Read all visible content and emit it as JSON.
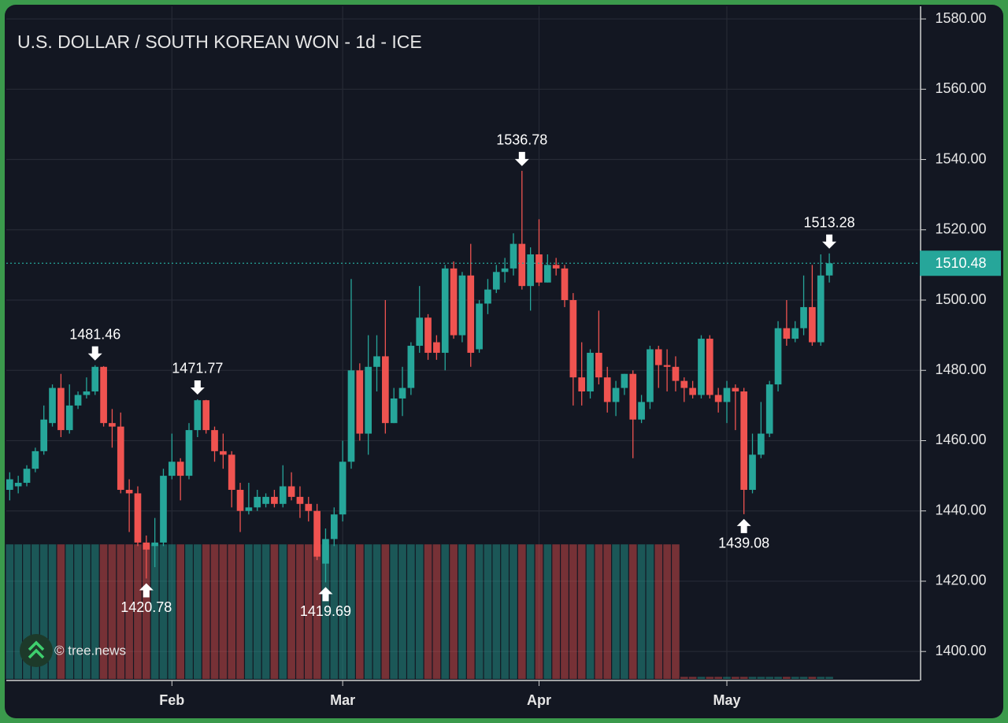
{
  "chart_data": {
    "type": "candlestick",
    "title": "U.S. DOLLAR / SOUTH KOREAN WON - 1d - ICE",
    "watermark": "© tree.news",
    "up_color": "#26a69a",
    "down_color": "#ef5350",
    "open": [
      1446,
      1447,
      1448,
      1452,
      1457,
      1465,
      1475,
      1463,
      1470,
      1473,
      1474,
      1481,
      1465,
      1464,
      1446,
      1445,
      1431,
      1430,
      1431,
      1450,
      1454,
      1450,
      1463,
      1471.5,
      1463,
      1457,
      1456,
      1446,
      1440,
      1441,
      1442,
      1444,
      1442,
      1447,
      1444,
      1442,
      1440,
      1425,
      1432,
      1439,
      1454,
      1480,
      1462,
      1481,
      1484,
      1465,
      1472,
      1475,
      1487,
      1495,
      1488,
      1485,
      1509,
      1490,
      1507,
      1486,
      1499,
      1503,
      1508,
      1509,
      1516,
      1504,
      1513,
      1505,
      1510,
      1509,
      1500,
      1478,
      1474,
      1485,
      1478,
      1471,
      1475,
      1479,
      1466,
      1471,
      1486,
      1481.5,
      1481,
      1477,
      1475,
      1473,
      1489,
      1473,
      1471,
      1475,
      1474,
      1446,
      1456,
      1462,
      1476,
      1492,
      1489,
      1492,
      1498,
      1488,
      1507
    ],
    "high": [
      1451,
      1450,
      1453,
      1458,
      1470,
      1476,
      1479,
      1476,
      1474,
      1478,
      1481.46,
      1481.2,
      1469,
      1468,
      1449,
      1447,
      1433,
      1438,
      1452,
      1462,
      1455,
      1465,
      1471.77,
      1471.6,
      1464,
      1462,
      1457,
      1448,
      1448,
      1446,
      1445,
      1446,
      1453,
      1451,
      1447,
      1444,
      1442,
      1435,
      1441,
      1460,
      1506,
      1482,
      1490,
      1490,
      1500,
      1475,
      1481,
      1488,
      1504,
      1496,
      1490,
      1510,
      1511,
      1508,
      1516,
      1500,
      1506,
      1510,
      1512,
      1519,
      1536.78,
      1515,
      1523,
      1513,
      1512,
      1510,
      1502,
      1488,
      1486,
      1497,
      1481,
      1477,
      1479,
      1480,
      1473,
      1487,
      1487,
      1486,
      1484,
      1478,
      1477,
      1490,
      1490,
      1475,
      1477,
      1476,
      1475,
      1462,
      1471,
      1477,
      1494,
      1500,
      1494,
      1507,
      1510,
      1513,
      1513.28
    ],
    "low": [
      1443,
      1445,
      1447,
      1451,
      1456,
      1464,
      1461,
      1462,
      1469,
      1472,
      1473,
      1464,
      1458,
      1445,
      1434,
      1430,
      1420.78,
      1424,
      1430,
      1449,
      1443,
      1449,
      1461,
      1462,
      1454,
      1452,
      1441,
      1434,
      1439,
      1440,
      1441,
      1441,
      1441,
      1443,
      1438,
      1437,
      1426,
      1419.69,
      1430,
      1437,
      1452,
      1460,
      1456,
      1474,
      1462,
      1465,
      1467,
      1473,
      1485,
      1483,
      1483,
      1480,
      1489,
      1488,
      1481,
      1485,
      1496,
      1502,
      1505,
      1507,
      1503,
      1497,
      1504,
      1505,
      1507,
      1498,
      1470,
      1470,
      1472,
      1476,
      1468,
      1467,
      1473,
      1455,
      1465,
      1469,
      1475,
      1474,
      1474,
      1471,
      1472,
      1472,
      1472,
      1468,
      1465,
      1463,
      1439.08,
      1445,
      1455,
      1461,
      1474,
      1487,
      1488,
      1490,
      1487,
      1487,
      1505
    ],
    "close": [
      1449,
      1448,
      1452,
      1457,
      1466,
      1475,
      1463,
      1470,
      1473,
      1474,
      1481,
      1465,
      1464,
      1446,
      1445,
      1431,
      1429,
      1431,
      1450,
      1454,
      1450,
      1463,
      1471.5,
      1463,
      1457,
      1456,
      1446,
      1440,
      1441,
      1444,
      1444,
      1442,
      1447,
      1444,
      1442,
      1440,
      1427,
      1432,
      1439,
      1454,
      1480,
      1462,
      1481,
      1484,
      1465,
      1472,
      1475,
      1487,
      1495,
      1485,
      1485,
      1509,
      1490,
      1507,
      1485,
      1499,
      1503,
      1508,
      1509,
      1516,
      1504,
      1513,
      1505,
      1510,
      1509,
      1500,
      1478,
      1474,
      1485,
      1478,
      1471,
      1475,
      1479,
      1466,
      1471,
      1486,
      1481.5,
      1481,
      1477,
      1475,
      1473,
      1489,
      1473,
      1471,
      1475,
      1474,
      1446,
      1456,
      1462,
      1476,
      1492,
      1489,
      1492,
      1498,
      1488,
      1507,
      1510.48
    ],
    "volume": [
      20,
      20,
      20,
      20,
      20,
      20,
      20,
      20,
      20,
      20,
      20,
      20,
      20,
      20,
      20,
      20,
      20,
      20,
      20,
      20,
      20,
      20,
      20,
      20,
      20,
      20,
      20,
      20,
      20,
      20,
      20,
      20,
      20,
      20,
      20,
      20,
      20,
      20,
      20,
      20,
      20,
      20,
      20,
      20,
      20,
      20,
      20,
      20,
      20,
      20,
      20,
      20,
      20,
      20,
      20,
      20,
      20,
      20,
      20,
      20,
      20,
      20,
      20,
      20,
      20,
      20,
      20,
      20,
      20,
      20,
      20,
      20,
      20,
      20,
      20,
      20,
      20,
      20,
      20,
      0.3,
      0.3,
      0.3,
      0.3,
      0.3,
      0.3,
      0.3,
      0.3,
      0.3,
      0.3,
      0.3,
      0.3,
      0.3,
      0.3,
      0.3,
      0.3,
      0.3,
      0.3
    ],
    "volume_ylim": [
      0,
      100
    ],
    "xlim": [
      -0.4,
      106.6
    ],
    "xticks": [
      {
        "value": 19,
        "label": "Feb"
      },
      {
        "value": 39,
        "label": "Mar"
      },
      {
        "value": 62,
        "label": "Apr"
      },
      {
        "value": 84,
        "label": "May"
      }
    ],
    "ylim": [
      1392.2,
      1583.6
    ],
    "yticks": [
      {
        "value": 1400,
        "label": "1400.00"
      },
      {
        "value": 1420,
        "label": "1420.00"
      },
      {
        "value": 1440,
        "label": "1440.00"
      },
      {
        "value": 1460,
        "label": "1460.00"
      },
      {
        "value": 1480,
        "label": "1480.00"
      },
      {
        "value": 1500,
        "label": "1500.00"
      },
      {
        "value": 1520,
        "label": "1520.00"
      },
      {
        "value": 1540,
        "label": "1540.00"
      },
      {
        "value": 1560,
        "label": "1560.00"
      },
      {
        "value": 1580,
        "label": "1580.00"
      }
    ],
    "grid": true,
    "last_price": 1510.48,
    "last_price_color": "#26a69a",
    "annotations": [
      {
        "index": 10,
        "value": 1481.46,
        "position": "above"
      },
      {
        "index": 16,
        "value": 1420.78,
        "position": "below"
      },
      {
        "index": 22,
        "value": 1471.77,
        "position": "above"
      },
      {
        "index": 37,
        "value": 1419.69,
        "position": "below"
      },
      {
        "index": 60,
        "value": 1536.78,
        "position": "above"
      },
      {
        "index": 86,
        "value": 1439.08,
        "position": "below"
      },
      {
        "index": 96,
        "value": 1513.28,
        "position": "above"
      }
    ]
  }
}
